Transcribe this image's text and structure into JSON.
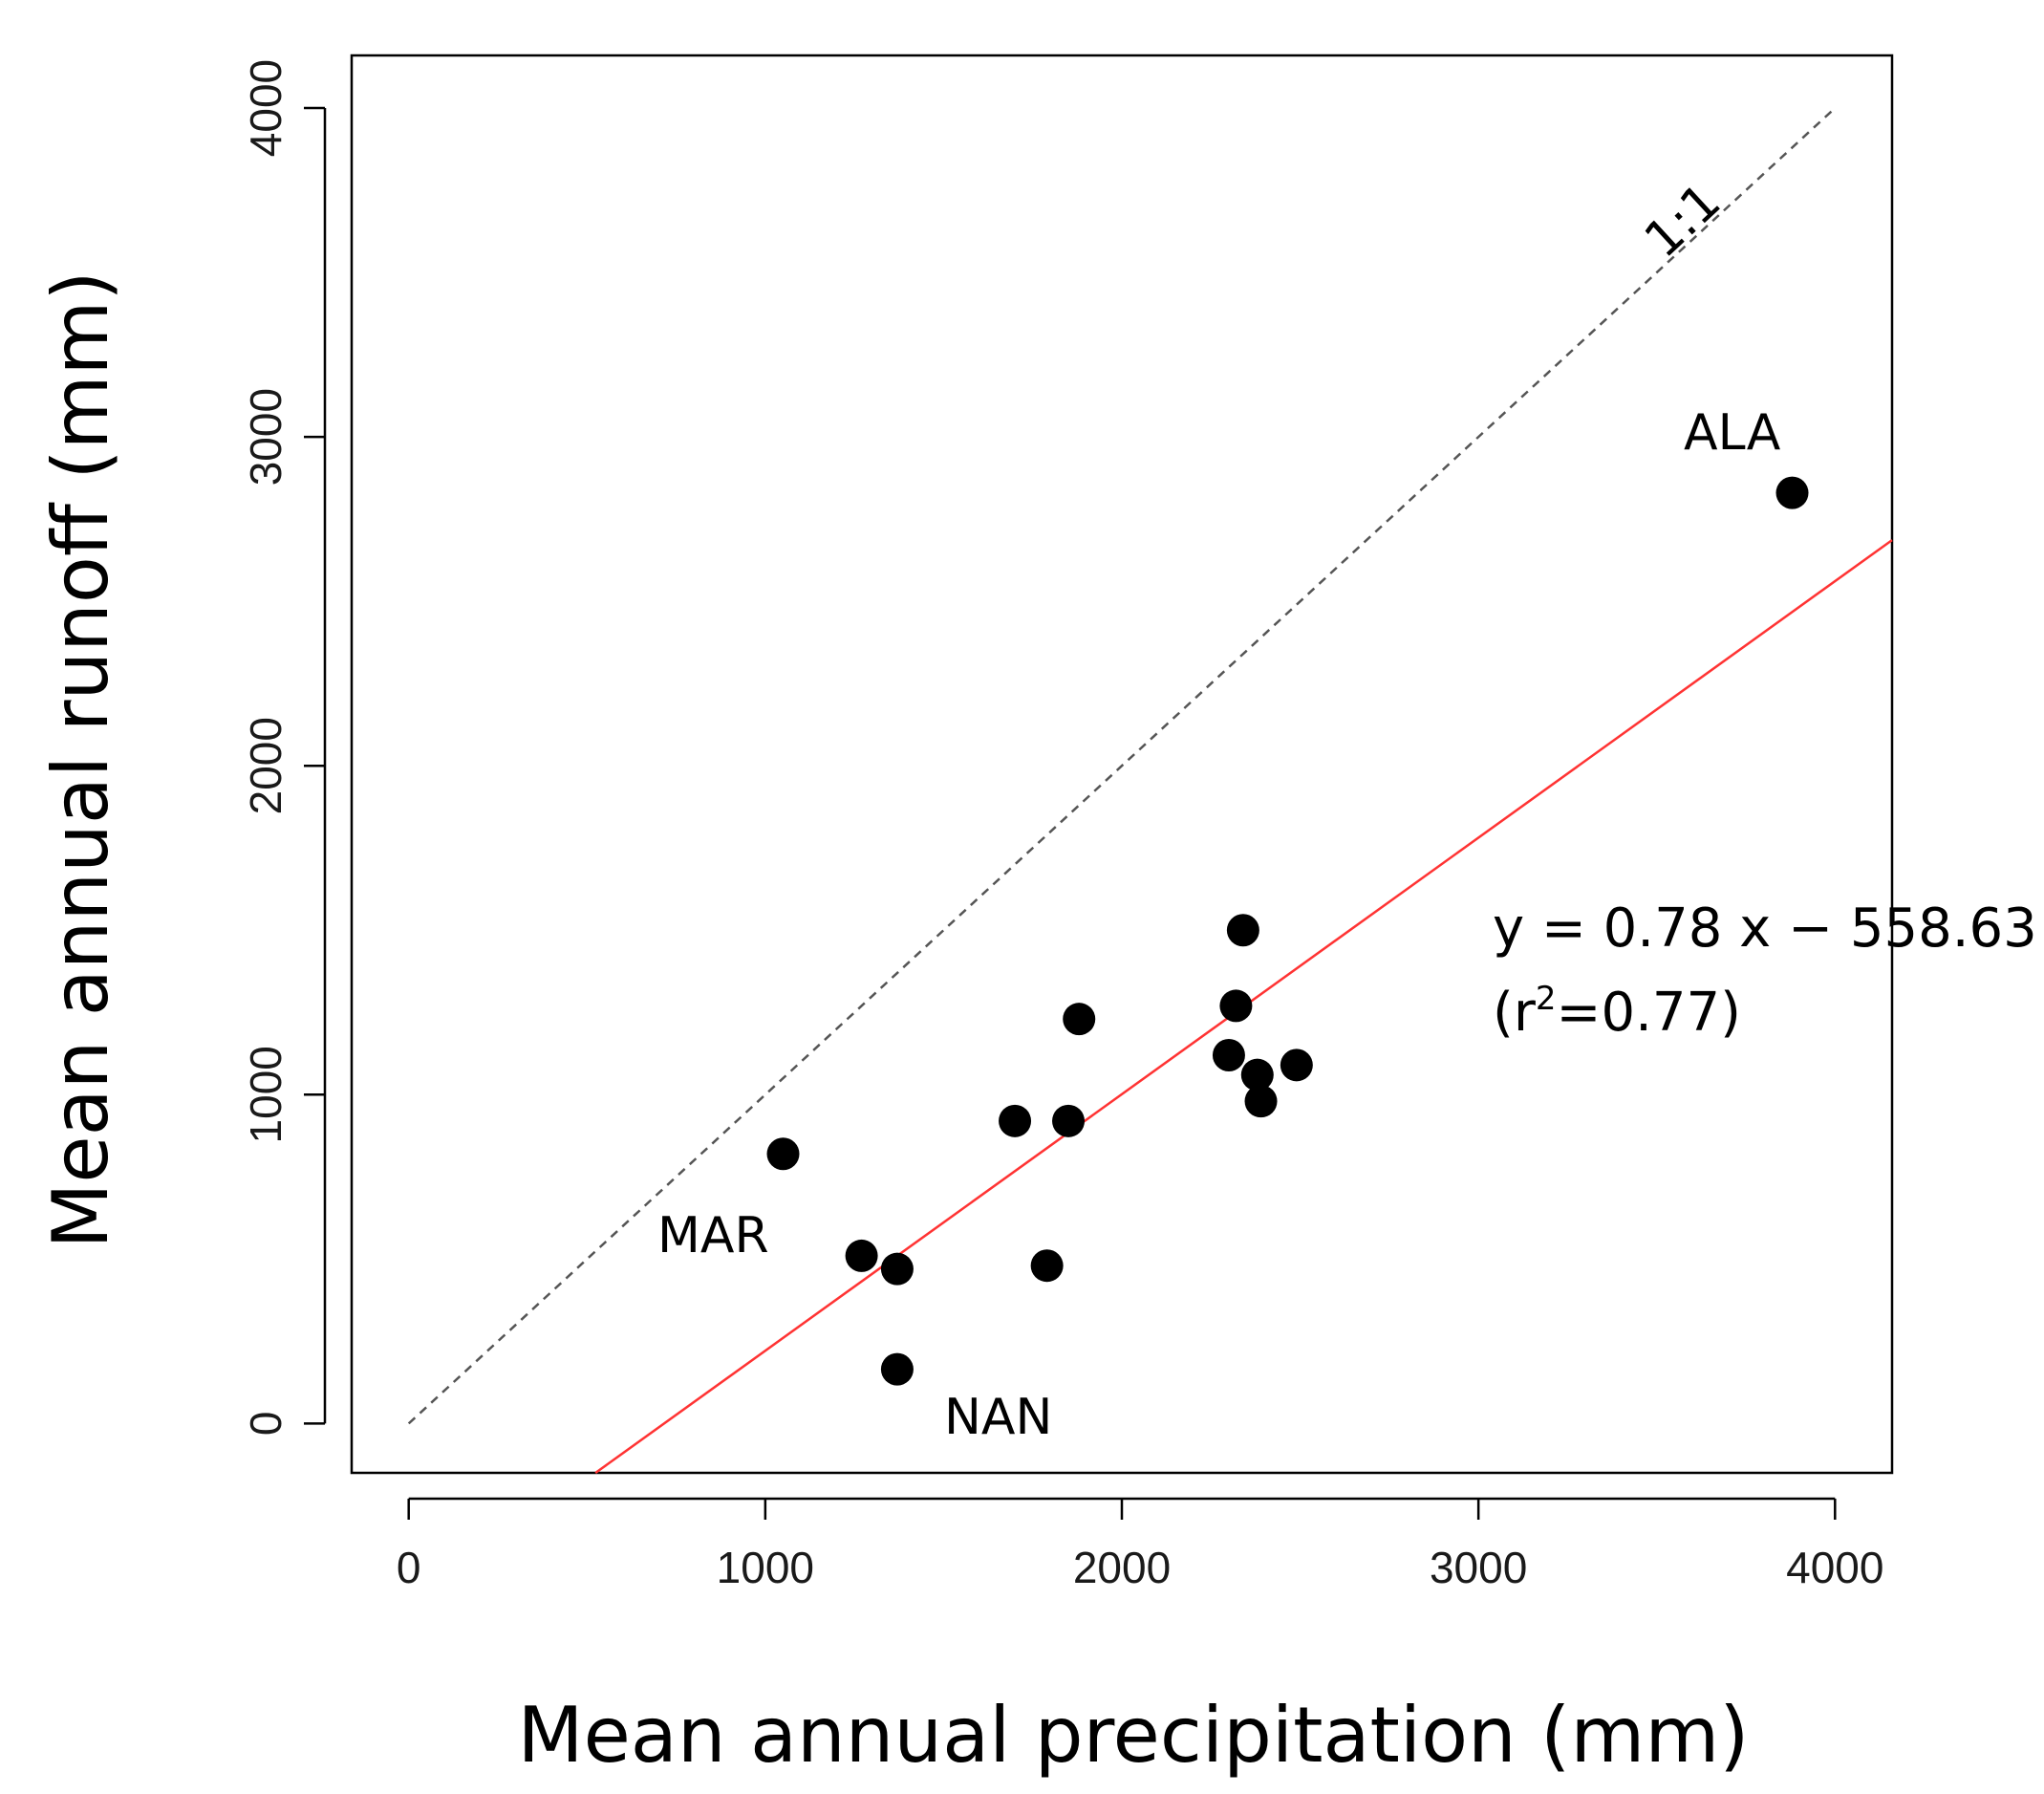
{
  "chart_data": {
    "type": "scatter",
    "xlabel": "Mean annual precipitation (mm)",
    "ylabel": "Mean annual runoff (mm)",
    "xlim": [
      -160,
      4160
    ],
    "ylim": [
      -150,
      4160
    ],
    "xticks": [
      0,
      1000,
      2000,
      3000,
      4000
    ],
    "yticks": [
      0,
      1000,
      2000,
      3000,
      4000
    ],
    "grid": false,
    "points": [
      {
        "x": 1050,
        "y": 820,
        "label": ""
      },
      {
        "x": 1270,
        "y": 510,
        "label": ""
      },
      {
        "x": 1370,
        "y": 470,
        "label": ""
      },
      {
        "x": 1370,
        "y": 165,
        "label": ""
      },
      {
        "x": 1700,
        "y": 920,
        "label": ""
      },
      {
        "x": 1790,
        "y": 480,
        "label": ""
      },
      {
        "x": 1850,
        "y": 920,
        "label": ""
      },
      {
        "x": 1880,
        "y": 1230,
        "label": ""
      },
      {
        "x": 2300,
        "y": 1120,
        "label": ""
      },
      {
        "x": 2320,
        "y": 1270,
        "label": ""
      },
      {
        "x": 2340,
        "y": 1500,
        "label": ""
      },
      {
        "x": 2380,
        "y": 1060,
        "label": ""
      },
      {
        "x": 2390,
        "y": 980,
        "label": ""
      },
      {
        "x": 2490,
        "y": 1090,
        "label": ""
      },
      {
        "x": 3880,
        "y": 2830,
        "label": ""
      }
    ],
    "reference_line": {
      "label": "1:1",
      "slope": 1,
      "intercept": 0,
      "x_range": [
        0,
        4000
      ],
      "color": "#555555",
      "style": "dashed"
    },
    "fit_line": {
      "slope": 0.78,
      "intercept": -558.63,
      "color": "#ff3333",
      "style": "solid"
    },
    "annotations": {
      "ala": "ALA",
      "mar": "MAR",
      "nan": "NAN",
      "equation": "y = 0.78 x − 558.63",
      "r2_open": "(r",
      "r2_sup": "2",
      "r2_close": "=0.77)"
    }
  }
}
